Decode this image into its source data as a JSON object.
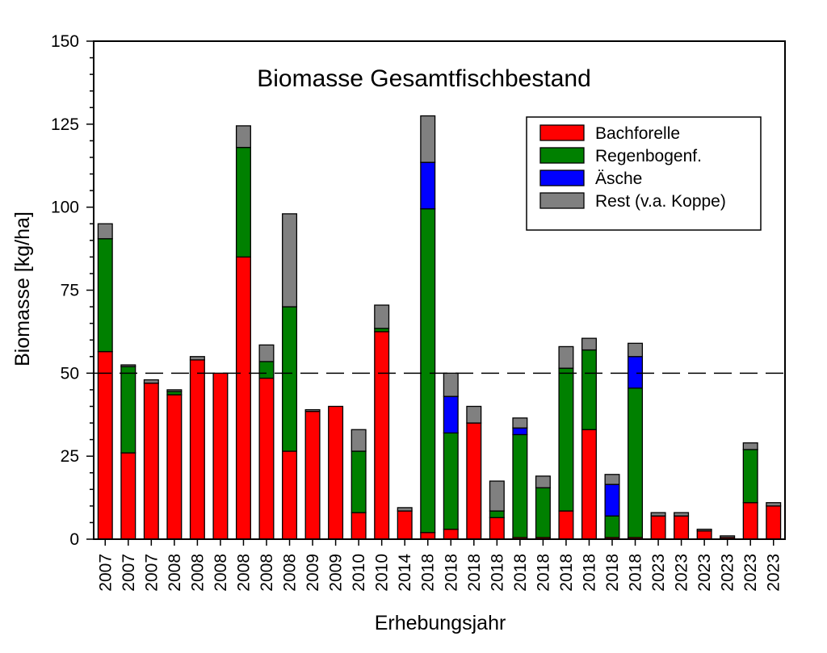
{
  "chart_data": {
    "type": "bar",
    "stacked": true,
    "title": "Biomasse Gesamtfischbestand",
    "xlabel": "Erhebungsjahr",
    "ylabel": "Biomasse [kg/ha]",
    "ylim": [
      0,
      150
    ],
    "yticks": [
      0,
      25,
      50,
      75,
      100,
      125,
      150
    ],
    "reference_line": 50,
    "legend_position": "top-right",
    "grid": false,
    "categories": [
      "2007",
      "2007",
      "2007",
      "2008",
      "2008",
      "2008",
      "2008",
      "2008",
      "2008",
      "2009",
      "2009",
      "2010",
      "2010",
      "2014",
      "2018",
      "2018",
      "2018",
      "2018",
      "2018",
      "2018",
      "2018",
      "2018",
      "2018",
      "2018",
      "2023",
      "2023",
      "2023",
      "2023",
      "2023",
      "2023"
    ],
    "series": [
      {
        "name": "Bachforelle",
        "color": "#ff0000",
        "values": [
          56.5,
          26,
          47,
          43.5,
          54,
          50,
          85,
          48.5,
          26.5,
          38.5,
          40,
          8,
          62.5,
          8.5,
          2,
          3,
          35,
          6.5,
          0.5,
          0.5,
          8.5,
          33,
          0.5,
          0.5,
          7,
          7,
          2.5,
          0.5,
          11,
          10
        ]
      },
      {
        "name": "Regenbogenf.",
        "color": "#008000",
        "values": [
          34,
          26,
          0,
          1,
          0,
          0,
          33,
          5,
          43.5,
          0,
          0,
          18.5,
          1,
          0,
          97.5,
          29,
          0,
          2,
          31,
          15,
          43,
          24,
          6.5,
          45,
          0,
          0,
          0,
          0,
          16,
          0
        ]
      },
      {
        "name": "Äsche",
        "color": "#0000ff",
        "values": [
          0,
          0,
          0,
          0,
          0,
          0,
          0,
          0,
          0,
          0,
          0,
          0,
          0,
          0,
          14,
          11,
          0,
          0,
          2,
          0,
          0,
          0,
          9.5,
          9.5,
          0,
          0,
          0,
          0,
          0,
          0
        ]
      },
      {
        "name": "Rest (v.a. Koppe)",
        "color": "#808080",
        "values": [
          4.5,
          0.5,
          1,
          0.5,
          1,
          0,
          6.5,
          5,
          28,
          0.5,
          0,
          6.5,
          7,
          1,
          14,
          7,
          5,
          9,
          3,
          3.5,
          6.5,
          3.5,
          3,
          4,
          1,
          1,
          0.5,
          0.5,
          2,
          1
        ]
      }
    ]
  }
}
